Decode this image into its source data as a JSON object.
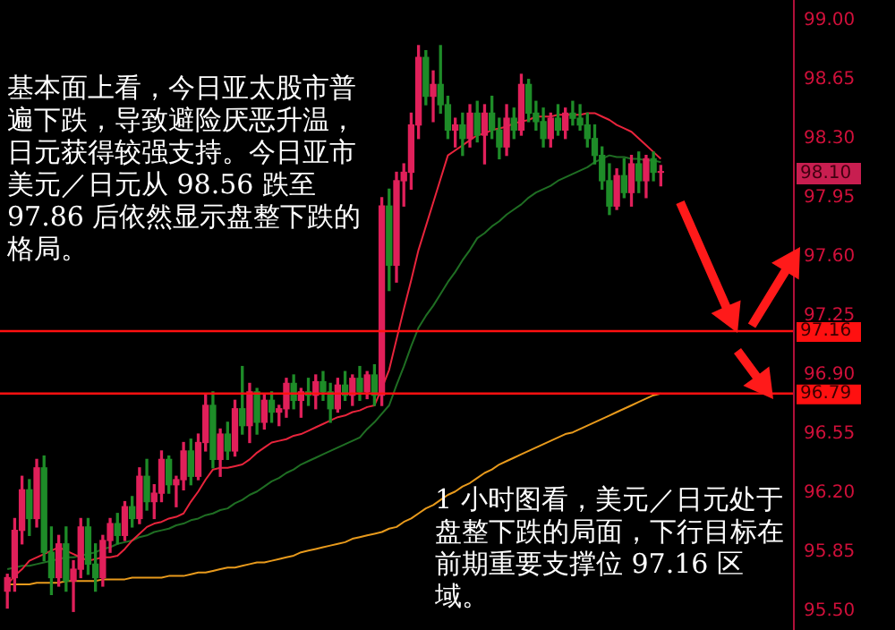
{
  "chart_data": {
    "type": "candlestick",
    "categories": [
      null,
      null,
      null,
      null,
      null,
      null,
      null,
      null,
      null,
      null,
      null,
      null,
      null,
      null,
      null,
      null,
      null,
      null,
      null,
      null,
      null,
      null,
      null,
      null,
      null,
      null,
      null,
      null,
      null,
      null,
      null,
      null,
      null,
      null,
      null,
      null,
      null,
      null,
      null,
      null,
      null,
      null,
      null,
      null,
      null,
      null,
      null,
      null,
      null,
      null,
      null,
      null,
      null,
      null,
      null,
      null,
      null,
      null,
      null,
      null,
      null,
      null,
      null,
      null,
      null,
      null,
      null,
      null,
      null,
      null,
      null,
      null,
      null,
      null,
      null,
      null,
      null,
      null,
      null,
      null,
      null,
      null,
      null,
      null,
      null,
      null,
      null,
      null,
      null,
      null
    ],
    "ohlc": [
      [
        95.62,
        95.72,
        95.52,
        95.7
      ],
      [
        95.7,
        96.05,
        95.62,
        95.98
      ],
      [
        95.98,
        96.3,
        95.9,
        96.22
      ],
      [
        96.22,
        96.28,
        95.95,
        96.05
      ],
      [
        96.05,
        96.4,
        96.0,
        96.35
      ],
      [
        96.35,
        96.42,
        95.8,
        95.85
      ],
      [
        95.85,
        96.0,
        95.6,
        95.7
      ],
      [
        95.7,
        95.95,
        95.65,
        95.9
      ],
      [
        95.9,
        96.0,
        95.62,
        95.68
      ],
      [
        95.68,
        95.8,
        95.5,
        95.75
      ],
      [
        95.75,
        96.05,
        95.7,
        96.0
      ],
      [
        96.0,
        96.05,
        95.72,
        95.78
      ],
      [
        95.78,
        95.9,
        95.62,
        95.7
      ],
      [
        95.7,
        95.95,
        95.65,
        95.92
      ],
      [
        95.92,
        96.05,
        95.85,
        96.02
      ],
      [
        96.02,
        96.08,
        95.9,
        95.95
      ],
      [
        95.95,
        96.15,
        95.92,
        96.12
      ],
      [
        96.12,
        96.18,
        96.0,
        96.05
      ],
      [
        96.05,
        96.35,
        96.02,
        96.3
      ],
      [
        96.3,
        96.4,
        96.1,
        96.15
      ],
      [
        96.15,
        96.25,
        96.05,
        96.2
      ],
      [
        96.2,
        96.45,
        96.15,
        96.4
      ],
      [
        96.4,
        96.42,
        96.2,
        96.25
      ],
      [
        96.25,
        96.3,
        96.12,
        96.28
      ],
      [
        96.28,
        96.5,
        96.22,
        96.45
      ],
      [
        96.45,
        96.52,
        96.25,
        96.3
      ],
      [
        96.3,
        96.55,
        96.28,
        96.5
      ],
      [
        96.5,
        96.78,
        96.45,
        96.72
      ],
      [
        96.72,
        96.8,
        96.35,
        96.4
      ],
      [
        96.4,
        96.58,
        96.3,
        96.55
      ],
      [
        96.55,
        96.62,
        96.4,
        96.45
      ],
      [
        96.45,
        96.75,
        96.42,
        96.7
      ],
      [
        96.7,
        96.95,
        96.55,
        96.6
      ],
      [
        96.6,
        96.85,
        96.5,
        96.8
      ],
      [
        96.8,
        96.82,
        96.55,
        96.62
      ],
      [
        96.62,
        96.78,
        96.58,
        96.75
      ],
      [
        96.75,
        96.8,
        96.62,
        96.68
      ],
      [
        96.68,
        96.72,
        96.6,
        96.7
      ],
      [
        96.7,
        96.88,
        96.65,
        96.85
      ],
      [
        96.85,
        96.9,
        96.7,
        96.75
      ],
      [
        96.75,
        96.82,
        96.65,
        96.8
      ],
      [
        96.8,
        96.88,
        96.72,
        96.78
      ],
      [
        96.78,
        96.9,
        96.7,
        96.86
      ],
      [
        96.86,
        96.92,
        96.75,
        96.8
      ],
      [
        96.8,
        96.85,
        96.62,
        96.7
      ],
      [
        96.7,
        96.88,
        96.68,
        96.84
      ],
      [
        96.84,
        96.92,
        96.75,
        96.78
      ],
      [
        96.78,
        96.9,
        96.72,
        96.88
      ],
      [
        96.88,
        96.95,
        96.75,
        96.8
      ],
      [
        96.8,
        96.92,
        96.76,
        96.9
      ],
      [
        96.9,
        96.96,
        96.72,
        96.78
      ],
      [
        96.78,
        97.95,
        96.72,
        97.9
      ],
      [
        97.9,
        98.0,
        97.4,
        97.55
      ],
      [
        97.55,
        98.1,
        97.45,
        98.05
      ],
      [
        98.05,
        98.15,
        97.9,
        98.1
      ],
      [
        98.1,
        98.45,
        98.0,
        98.38
      ],
      [
        98.38,
        98.85,
        98.3,
        98.78
      ],
      [
        98.78,
        98.82,
        98.5,
        98.55
      ],
      [
        98.55,
        98.7,
        98.4,
        98.62
      ],
      [
        98.62,
        98.85,
        98.45,
        98.5
      ],
      [
        98.5,
        98.55,
        98.3,
        98.35
      ],
      [
        98.35,
        98.42,
        98.25,
        98.38
      ],
      [
        98.38,
        98.45,
        98.2,
        98.3
      ],
      [
        98.3,
        98.5,
        98.25,
        98.45
      ],
      [
        98.45,
        98.52,
        98.28,
        98.32
      ],
      [
        98.32,
        98.5,
        98.15,
        98.45
      ],
      [
        98.45,
        98.55,
        98.3,
        98.35
      ],
      [
        98.35,
        98.42,
        98.18,
        98.25
      ],
      [
        98.25,
        98.5,
        98.2,
        98.42
      ],
      [
        98.42,
        98.48,
        98.3,
        98.35
      ],
      [
        98.35,
        98.68,
        98.32,
        98.62
      ],
      [
        98.62,
        98.65,
        98.4,
        98.45
      ],
      [
        98.45,
        98.52,
        98.35,
        98.4
      ],
      [
        98.4,
        98.48,
        98.25,
        98.3
      ],
      [
        98.3,
        98.45,
        98.25,
        98.42
      ],
      [
        98.42,
        98.5,
        98.32,
        98.35
      ],
      [
        98.35,
        98.48,
        98.3,
        98.45
      ],
      [
        98.45,
        98.52,
        98.38,
        98.42
      ],
      [
        98.42,
        98.5,
        98.35,
        98.38
      ],
      [
        98.38,
        98.45,
        98.25,
        98.3
      ],
      [
        98.3,
        98.38,
        98.15,
        98.2
      ],
      [
        98.2,
        98.25,
        98.0,
        98.05
      ],
      [
        98.05,
        98.15,
        97.85,
        97.9
      ],
      [
        97.9,
        98.12,
        97.88,
        98.08
      ],
      [
        98.08,
        98.18,
        97.95,
        97.98
      ],
      [
        97.98,
        98.2,
        97.9,
        98.15
      ],
      [
        98.15,
        98.22,
        97.98,
        98.05
      ],
      [
        98.05,
        98.2,
        97.95,
        98.18
      ],
      [
        98.18,
        98.22,
        98.05,
        98.1
      ],
      [
        98.1,
        98.14,
        98.02,
        98.1
      ]
    ],
    "series": [
      {
        "type": "line",
        "color": "#e8243c",
        "values": [
          95.66,
          95.71,
          95.75,
          95.8,
          95.82,
          95.84,
          95.86,
          95.88,
          95.86,
          95.84,
          95.82,
          95.8,
          95.81,
          95.82,
          95.82,
          95.83,
          95.87,
          95.92,
          95.96,
          96.0,
          96.02,
          96.03,
          96.05,
          96.06,
          96.08,
          96.15,
          96.21,
          96.28,
          96.34,
          96.35,
          96.35,
          96.36,
          96.37,
          96.4,
          96.44,
          96.47,
          96.5,
          96.51,
          96.52,
          96.54,
          96.55,
          96.57,
          96.59,
          96.61,
          96.63,
          96.65,
          96.66,
          96.68,
          96.69,
          96.71,
          96.72,
          96.82,
          96.93,
          97.11,
          97.29,
          97.46,
          97.64,
          97.78,
          97.92,
          98.06,
          98.2,
          98.23,
          98.26,
          98.29,
          98.32,
          98.33,
          98.35,
          98.36,
          98.37,
          98.39,
          98.4,
          98.41,
          98.43,
          98.43,
          98.43,
          98.44,
          98.44,
          98.44,
          98.44,
          98.45,
          98.45,
          98.43,
          98.41,
          98.38,
          98.36,
          98.34,
          98.3,
          98.26,
          98.22,
          98.18
        ]
      },
      {
        "type": "line",
        "color": "#1f6e23",
        "values": [
          95.75,
          95.76,
          95.77,
          95.77,
          95.78,
          95.79,
          95.8,
          95.81,
          95.82,
          95.82,
          95.83,
          95.84,
          95.85,
          95.87,
          95.88,
          95.9,
          95.91,
          95.92,
          95.94,
          95.95,
          95.97,
          95.98,
          95.99,
          96.01,
          96.02,
          96.04,
          96.05,
          96.07,
          96.08,
          96.1,
          96.11,
          96.14,
          96.16,
          96.19,
          96.21,
          96.24,
          96.27,
          96.29,
          96.32,
          96.34,
          96.37,
          96.39,
          96.41,
          96.43,
          96.45,
          96.47,
          96.49,
          96.51,
          96.53,
          96.58,
          96.62,
          96.67,
          96.72,
          96.84,
          96.95,
          97.07,
          97.18,
          97.25,
          97.31,
          97.38,
          97.45,
          97.51,
          97.58,
          97.64,
          97.71,
          97.74,
          97.78,
          97.81,
          97.85,
          97.88,
          97.91,
          97.95,
          97.98,
          98.0,
          98.02,
          98.05,
          98.07,
          98.09,
          98.11,
          98.13,
          98.16,
          98.18,
          98.2,
          98.19,
          98.19,
          98.18,
          98.18,
          98.17,
          98.17,
          98.16
        ]
      },
      {
        "type": "line",
        "color": "#e89a1c",
        "values": [
          95.66,
          95.66,
          95.66,
          95.66,
          95.67,
          95.67,
          95.67,
          95.67,
          95.68,
          95.68,
          95.68,
          95.68,
          95.68,
          95.69,
          95.69,
          95.69,
          95.69,
          95.7,
          95.7,
          95.7,
          95.7,
          95.7,
          95.71,
          95.71,
          95.71,
          95.72,
          95.73,
          95.73,
          95.74,
          95.75,
          95.76,
          95.76,
          95.77,
          95.78,
          95.79,
          95.79,
          95.8,
          95.81,
          95.82,
          95.83,
          95.85,
          95.86,
          95.87,
          95.88,
          95.89,
          95.9,
          95.91,
          95.93,
          95.94,
          95.95,
          95.96,
          95.97,
          95.99,
          96.0,
          96.03,
          96.05,
          96.08,
          96.11,
          96.13,
          96.16,
          96.19,
          96.21,
          96.24,
          96.26,
          96.29,
          96.32,
          96.34,
          96.37,
          96.39,
          96.41,
          96.43,
          96.45,
          96.47,
          96.49,
          96.51,
          96.53,
          96.55,
          96.56,
          96.58,
          96.6,
          96.62,
          96.64,
          96.66,
          96.68,
          96.7,
          96.72,
          96.74,
          96.76,
          96.78,
          96.79
        ]
      }
    ],
    "ylim": [
      95.39,
      99.12
    ],
    "yticks": [
      {
        "value": 95.5,
        "label": "95.50"
      },
      {
        "value": 95.85,
        "label": "95.85"
      },
      {
        "value": 96.2,
        "label": "96.20"
      },
      {
        "value": 96.55,
        "label": "96.55"
      },
      {
        "value": 96.9,
        "label": "96.90"
      },
      {
        "value": 97.25,
        "label": "97.25"
      },
      {
        "value": 97.6,
        "label": "97.60"
      },
      {
        "value": 97.95,
        "label": "97.95"
      },
      {
        "value": 98.3,
        "label": "98.30"
      },
      {
        "value": 98.65,
        "label": "98.65"
      },
      {
        "value": 99.0,
        "label": "99.00"
      }
    ],
    "ref_lines": [
      {
        "axis": "y",
        "value": 97.16,
        "label": "97.16",
        "color": "#ff1010"
      },
      {
        "axis": "y",
        "value": 96.79,
        "label": "96.79",
        "color": "#ff1010"
      }
    ],
    "annotations": [
      "基本面上看，今日亚太股市普遍下跌，导致避险厌恶升温，日元获得较强支持。今日亚市美元／日元从 98.56 跌至 97.86 后依然显示盘整下跌的格局。",
      "1 小时图看，美元／日元处于盘整下跌的局面，下行目标在前期重要支撑位 97.16 区域。",
      "98.10"
    ],
    "grid": false,
    "tick_labels": "y",
    "legend": false
  }
}
